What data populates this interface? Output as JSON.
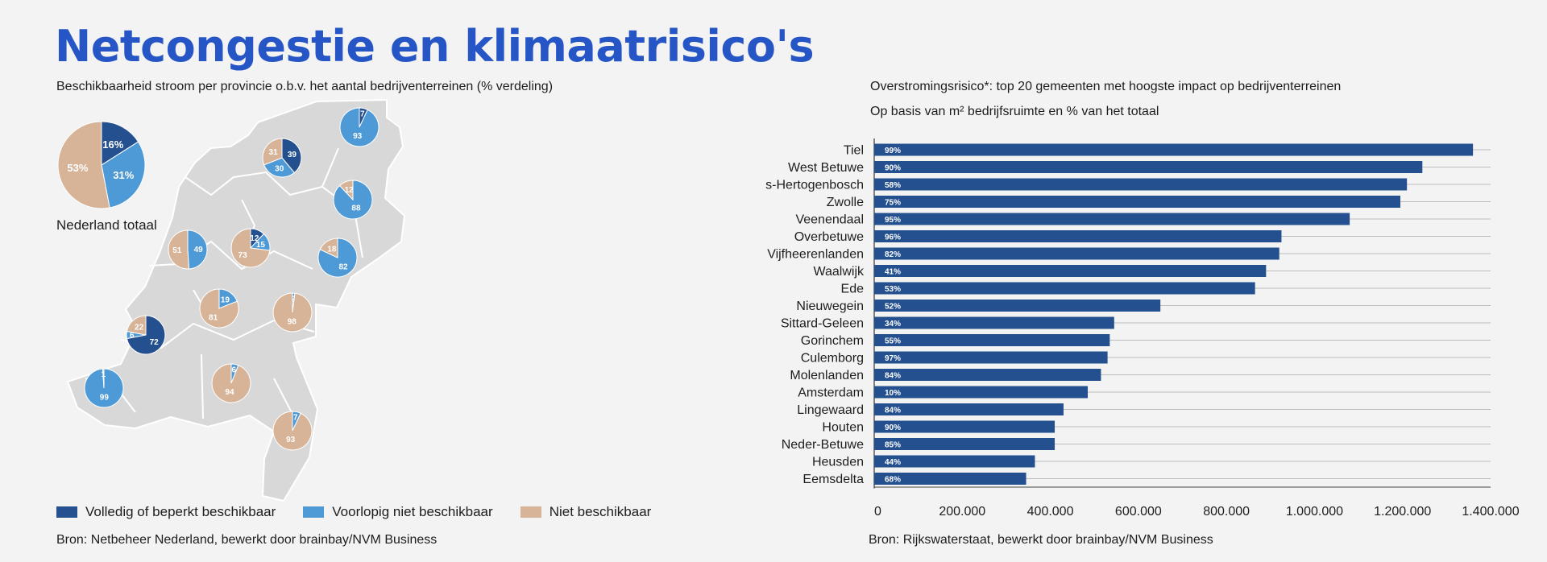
{
  "title": "Netcongestie en klimaatrisico's",
  "left": {
    "subtitle": "Beschikbaarheid stroom per provincie o.b.v. het aantal bedrijventerreinen (% verdeling)",
    "total_label": "Nederland totaal",
    "source": "Bron: Netbeheer Nederland, bewerkt door brainbay/NVM Business",
    "legend": [
      {
        "label": "Volledig of beperkt beschikbaar",
        "color": "#24508f"
      },
      {
        "label": "Voorlopig niet beschikbaar",
        "color": "#4e9ad6"
      },
      {
        "label": "Niet beschikbaar",
        "color": "#d7b498"
      }
    ]
  },
  "right": {
    "subtitle1": "Overstromingsrisico*: top 20 gemeenten met hoogste impact op bedrijventerreinen",
    "subtitle2": "Op basis van m² bedrijfsruimte en % van het totaal",
    "source": "Bron: Rijkswaterstaat, bewerkt door brainbay/NVM Business"
  },
  "chart_data": [
    {
      "type": "pie",
      "title": "Beschikbaarheid stroom per provincie o.b.v. het aantal bedrijventerreinen (% verdeling)",
      "series_names": [
        "Volledig of beperkt beschikbaar",
        "Voorlopig niet beschikbaar",
        "Niet beschikbaar"
      ],
      "colors": [
        "#24508f",
        "#4e9ad6",
        "#d7b498"
      ],
      "pies": [
        {
          "name": "Nederland totaal",
          "values": [
            16,
            31,
            53
          ],
          "labels": [
            "16%",
            "31%",
            "53%"
          ]
        },
        {
          "name": "Groningen",
          "values": [
            7,
            93,
            0
          ],
          "labels": [
            "7",
            "93",
            ""
          ]
        },
        {
          "name": "Friesland",
          "values": [
            39,
            30,
            31
          ],
          "labels": [
            "39",
            "30",
            "31"
          ]
        },
        {
          "name": "Drenthe",
          "values": [
            0,
            88,
            12
          ],
          "labels": [
            "",
            "88",
            "12"
          ]
        },
        {
          "name": "Noord-Holland",
          "values": [
            0,
            49,
            51
          ],
          "labels": [
            "",
            "49",
            "51"
          ]
        },
        {
          "name": "Flevoland",
          "values": [
            12,
            15,
            73
          ],
          "labels": [
            "12",
            "15",
            "73"
          ]
        },
        {
          "name": "Overijssel",
          "values": [
            0,
            82,
            18
          ],
          "labels": [
            "",
            "82",
            "18"
          ]
        },
        {
          "name": "Utrecht",
          "values": [
            0,
            19,
            81
          ],
          "labels": [
            "",
            "19",
            "81"
          ]
        },
        {
          "name": "Gelderland",
          "values": [
            0,
            2,
            98
          ],
          "labels": [
            "",
            "2",
            "98"
          ]
        },
        {
          "name": "Zuid-Holland",
          "values": [
            72,
            6,
            22
          ],
          "labels": [
            "72",
            "6",
            "22"
          ]
        },
        {
          "name": "Zeeland",
          "values": [
            0,
            99,
            1
          ],
          "labels": [
            "",
            "99",
            "1"
          ]
        },
        {
          "name": "Noord-Brabant",
          "values": [
            0,
            6,
            94
          ],
          "labels": [
            "",
            "6",
            "94"
          ]
        },
        {
          "name": "Limburg",
          "values": [
            0,
            7,
            93
          ],
          "labels": [
            "",
            "7",
            "93"
          ]
        }
      ]
    },
    {
      "type": "bar",
      "orientation": "horizontal",
      "title": "Overstromingsrisico*: top 20 gemeenten met hoogste impact op bedrijventerreinen",
      "subtitle": "Op basis van m² bedrijfsruimte en % van het totaal",
      "categories": [
        "Tiel",
        "West Betuwe",
        "s-Hertogenbosch",
        "Zwolle",
        "Veenendaal",
        "Overbetuwe",
        "Vijfheerenlanden",
        "Waalwijk",
        "Ede",
        "Nieuwegein",
        "Sittard-Geleen",
        "Gorinchem",
        "Culemborg",
        "Molenlanden",
        "Amsterdam",
        "Lingewaard",
        "Houten",
        "Neder-Betuwe",
        "Heusden",
        "Eemsdelta"
      ],
      "values": [
        1360000,
        1245000,
        1210000,
        1195000,
        1080000,
        925000,
        920000,
        890000,
        865000,
        650000,
        545000,
        535000,
        530000,
        515000,
        485000,
        430000,
        410000,
        410000,
        365000,
        345000
      ],
      "data_labels": [
        "99%",
        "90%",
        "58%",
        "75%",
        "95%",
        "96%",
        "82%",
        "41%",
        "53%",
        "52%",
        "34%",
        "55%",
        "97%",
        "84%",
        "10%",
        "84%",
        "90%",
        "85%",
        "44%",
        "68%"
      ],
      "xlim": [
        0,
        1400000
      ],
      "xticks": [
        0,
        200000,
        400000,
        600000,
        800000,
        1000000,
        1200000,
        1400000
      ],
      "xtick_labels": [
        "0",
        "200.000",
        "400.000",
        "600.000",
        "800.000",
        "1.000.000",
        "1.200.000",
        "1.400.000"
      ],
      "color": "#24508f",
      "grid": true
    }
  ]
}
